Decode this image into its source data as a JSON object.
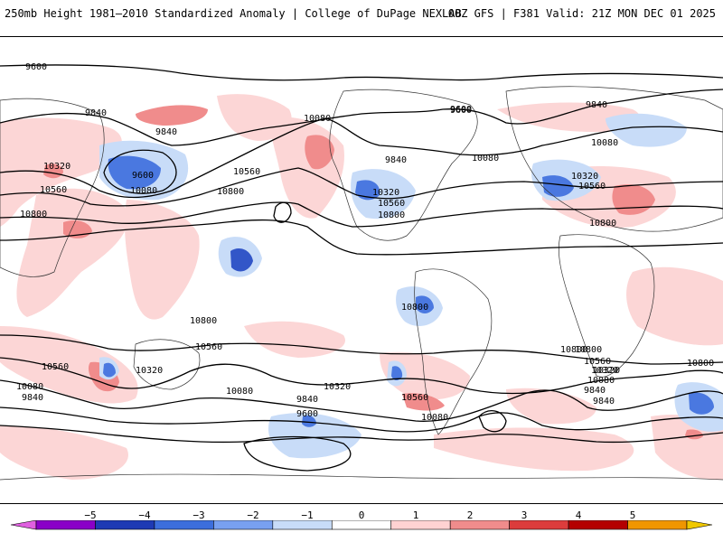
{
  "header": {
    "left_title": "250mb Height 1981–2010 Standardized Anomaly | College of DuPage NEXLAB",
    "right_title": "00Z GFS | F381 Valid: 21Z MON DEC 01 2025"
  },
  "map": {
    "contour_labels": [
      {
        "id": "c9600-a",
        "text": "9600"
      },
      {
        "id": "c9840-a",
        "text": "9840"
      },
      {
        "id": "c9840-b",
        "text": "9840"
      },
      {
        "id": "c9600-b",
        "text": "9600"
      },
      {
        "id": "c10080-a",
        "text": "10080"
      },
      {
        "id": "c10320-a",
        "text": "10320"
      },
      {
        "id": "c10560-a",
        "text": "10560"
      },
      {
        "id": "c10800-a",
        "text": "10800"
      },
      {
        "id": "c10560-b",
        "text": "10560"
      },
      {
        "id": "c10800-b",
        "text": "10800"
      },
      {
        "id": "c10080-b",
        "text": "10080"
      },
      {
        "id": "c9840-c",
        "text": "9840"
      },
      {
        "id": "c9600-c",
        "text": "9600"
      },
      {
        "id": "c10320-b",
        "text": "10320"
      },
      {
        "id": "c10560-c",
        "text": "10560"
      },
      {
        "id": "c10080-c",
        "text": "10080"
      },
      {
        "id": "c10800-c",
        "text": "10800"
      },
      {
        "id": "c9600-d",
        "text": "9600"
      },
      {
        "id": "c9840-d",
        "text": "9840"
      },
      {
        "id": "c10080-d",
        "text": "10080"
      },
      {
        "id": "c10320-c",
        "text": "10320"
      },
      {
        "id": "c10560-d",
        "text": "10560"
      },
      {
        "id": "c10800-d",
        "text": "10800"
      },
      {
        "id": "c10800-e",
        "text": "10800"
      },
      {
        "id": "c10560-e",
        "text": "10560"
      },
      {
        "id": "c10320-d",
        "text": "10320"
      },
      {
        "id": "c10080-e",
        "text": "10080"
      },
      {
        "id": "c9840-e",
        "text": "9840"
      },
      {
        "id": "c10800-f",
        "text": "10800"
      },
      {
        "id": "c10560-f",
        "text": "10560"
      },
      {
        "id": "c10320-e",
        "text": "10320"
      },
      {
        "id": "c10080-f",
        "text": "10080"
      },
      {
        "id": "c9840-f",
        "text": "9840"
      },
      {
        "id": "c10800-g",
        "text": "10800"
      },
      {
        "id": "c10560-g",
        "text": "10560"
      },
      {
        "id": "c10320-f",
        "text": "10320"
      },
      {
        "id": "c10080-g",
        "text": "10080"
      },
      {
        "id": "c9840-g",
        "text": "9840"
      },
      {
        "id": "c9600-e",
        "text": "9600"
      },
      {
        "id": "c10560-h",
        "text": "10560"
      },
      {
        "id": "c10080-h",
        "text": "10080"
      },
      {
        "id": "c10800-h",
        "text": "10800"
      },
      {
        "id": "c10320-g",
        "text": "10320"
      },
      {
        "id": "c9840-h",
        "text": "9840"
      },
      {
        "id": "c10800-i",
        "text": "10800"
      }
    ]
  },
  "colorbar": {
    "ticks": [
      "−5",
      "−4",
      "−3",
      "−2",
      "−1",
      "0",
      "1",
      "2",
      "3",
      "4",
      "5"
    ],
    "colors": [
      "#e060e0",
      "#8a00c8",
      "#1e3ab4",
      "#3c6edc",
      "#78a0f0",
      "#c8dcf8",
      "#ffffff",
      "#ffd2d2",
      "#f08c8c",
      "#dc3c3c",
      "#b40000",
      "#f09600",
      "#f0c800"
    ]
  }
}
